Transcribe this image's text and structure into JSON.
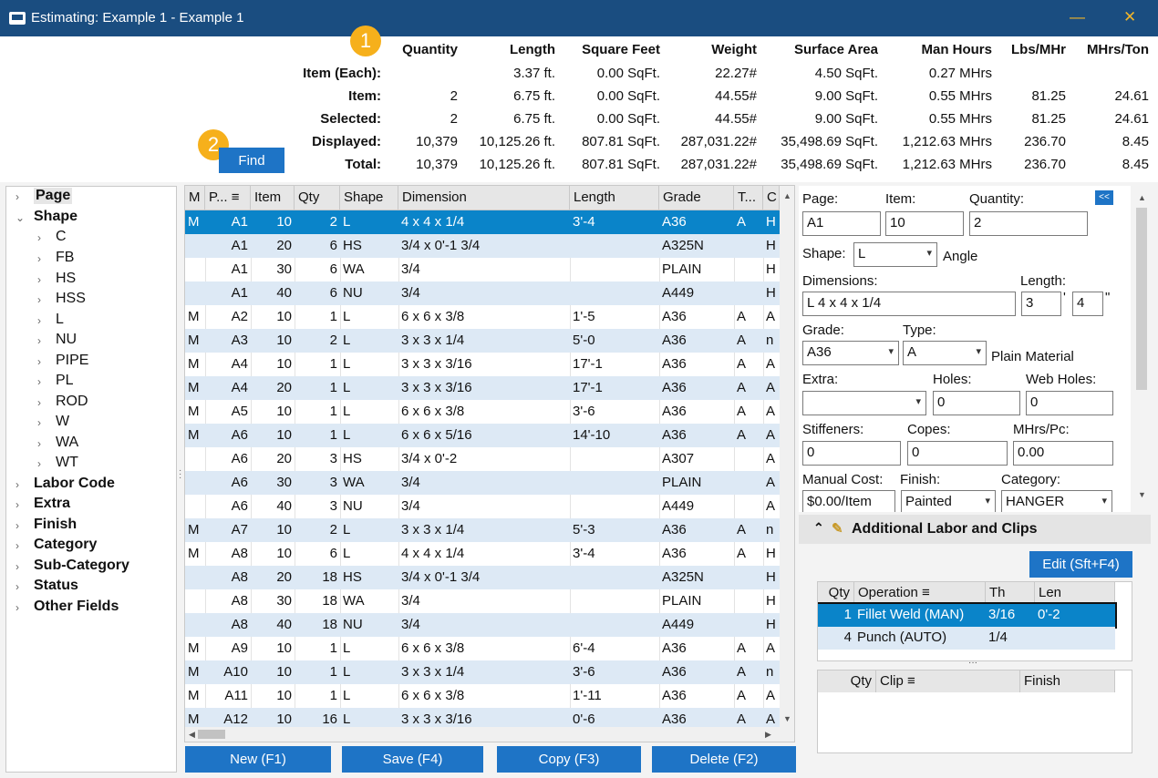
{
  "window": {
    "title": "Estimating: Example 1 - Example 1",
    "minimize": "—",
    "close": "✕"
  },
  "summary": {
    "badge1": "1",
    "badge2": "2",
    "columns": [
      "Quantity",
      "Length",
      "Square Feet",
      "Weight",
      "Surface Area",
      "Man Hours",
      "Lbs/MHr",
      "MHrs/Ton"
    ],
    "rows": [
      {
        "label": "Item (Each):",
        "values": [
          "",
          "3.37 ft.",
          "0.00 SqFt.",
          "22.27#",
          "4.50 SqFt.",
          "0.27 MHrs",
          "",
          ""
        ]
      },
      {
        "label": "Item:",
        "values": [
          "2",
          "6.75 ft.",
          "0.00 SqFt.",
          "44.55#",
          "9.00 SqFt.",
          "0.55 MHrs",
          "81.25",
          "24.61"
        ]
      },
      {
        "label": "Selected:",
        "values": [
          "2",
          "6.75 ft.",
          "0.00 SqFt.",
          "44.55#",
          "9.00 SqFt.",
          "0.55 MHrs",
          "81.25",
          "24.61"
        ]
      },
      {
        "label": "Displayed:",
        "values": [
          "10,379",
          "10,125.26 ft.",
          "807.81 SqFt.",
          "287,031.22#",
          "35,498.69 SqFt.",
          "1,212.63 MHrs",
          "236.70",
          "8.45"
        ]
      },
      {
        "label": "Total:",
        "values": [
          "10,379",
          "10,125.26 ft.",
          "807.81 SqFt.",
          "287,031.22#",
          "35,498.69 SqFt.",
          "1,212.63 MHrs",
          "236.70",
          "8.45"
        ]
      }
    ],
    "find_label": "Find"
  },
  "tree": {
    "nodes": [
      {
        "label": "Page",
        "bold": true,
        "level": 0,
        "expander": "›"
      },
      {
        "label": "Shape",
        "bold": true,
        "level": 0,
        "expander": "⌄"
      },
      {
        "label": "C",
        "bold": false,
        "level": 1,
        "expander": "›"
      },
      {
        "label": "FB",
        "bold": false,
        "level": 1,
        "expander": "›"
      },
      {
        "label": "HS",
        "bold": false,
        "level": 1,
        "expander": "›"
      },
      {
        "label": "HSS",
        "bold": false,
        "level": 1,
        "expander": "›"
      },
      {
        "label": "L",
        "bold": false,
        "level": 1,
        "expander": "›"
      },
      {
        "label": "NU",
        "bold": false,
        "level": 1,
        "expander": "›"
      },
      {
        "label": "PIPE",
        "bold": false,
        "level": 1,
        "expander": "›"
      },
      {
        "label": "PL",
        "bold": false,
        "level": 1,
        "expander": "›"
      },
      {
        "label": "ROD",
        "bold": false,
        "level": 1,
        "expander": "›"
      },
      {
        "label": "W",
        "bold": false,
        "level": 1,
        "expander": "›"
      },
      {
        "label": "WA",
        "bold": false,
        "level": 1,
        "expander": "›"
      },
      {
        "label": "WT",
        "bold": false,
        "level": 1,
        "expander": "›"
      },
      {
        "label": "Labor Code",
        "bold": true,
        "level": 0,
        "expander": "›"
      },
      {
        "label": "Extra",
        "bold": true,
        "level": 0,
        "expander": "›"
      },
      {
        "label": "Finish",
        "bold": true,
        "level": 0,
        "expander": "›"
      },
      {
        "label": "Category",
        "bold": true,
        "level": 0,
        "expander": "›"
      },
      {
        "label": "Sub-Category",
        "bold": true,
        "level": 0,
        "expander": "›"
      },
      {
        "label": "Status",
        "bold": true,
        "level": 0,
        "expander": "›"
      },
      {
        "label": "Other Fields",
        "bold": true,
        "level": 0,
        "expander": "›"
      }
    ]
  },
  "grid": {
    "headers": [
      "M",
      "P... ≡",
      "Item",
      "Qty",
      "Shape",
      "Dimension",
      "Length",
      "Grade",
      "T...",
      "C"
    ],
    "rows": [
      [
        "M",
        "A1",
        "10",
        "2",
        "L",
        "4 x 4 x 1/4",
        "3'-4",
        "A36",
        "A",
        "H"
      ],
      [
        "",
        "A1",
        "20",
        "6",
        "HS",
        "3/4 x 0'-1 3/4",
        "",
        "A325N",
        "",
        "H"
      ],
      [
        "",
        "A1",
        "30",
        "6",
        "WA",
        "3/4",
        "",
        "PLAIN",
        "",
        "H"
      ],
      [
        "",
        "A1",
        "40",
        "6",
        "NU",
        "3/4",
        "",
        "A449",
        "",
        "H"
      ],
      [
        "M",
        "A2",
        "10",
        "1",
        "L",
        "6 x 6 x 3/8",
        "1'-5",
        "A36",
        "A",
        "A"
      ],
      [
        "M",
        "A3",
        "10",
        "2",
        "L",
        "3 x 3 x 1/4",
        "5'-0",
        "A36",
        "A",
        "n"
      ],
      [
        "M",
        "A4",
        "10",
        "1",
        "L",
        "3 x 3 x 3/16",
        "17'-1",
        "A36",
        "A",
        "A"
      ],
      [
        "M",
        "A4",
        "20",
        "1",
        "L",
        "3 x 3 x 3/16",
        "17'-1",
        "A36",
        "A",
        "A"
      ],
      [
        "M",
        "A5",
        "10",
        "1",
        "L",
        "6 x 6 x 3/8",
        "3'-6",
        "A36",
        "A",
        "A"
      ],
      [
        "M",
        "A6",
        "10",
        "1",
        "L",
        "6 x 6 x 5/16",
        "14'-10",
        "A36",
        "A",
        "A"
      ],
      [
        "",
        "A6",
        "20",
        "3",
        "HS",
        "3/4 x 0'-2",
        "",
        "A307",
        "",
        "A"
      ],
      [
        "",
        "A6",
        "30",
        "3",
        "WA",
        "3/4",
        "",
        "PLAIN",
        "",
        "A"
      ],
      [
        "",
        "A6",
        "40",
        "3",
        "NU",
        "3/4",
        "",
        "A449",
        "",
        "A"
      ],
      [
        "M",
        "A7",
        "10",
        "2",
        "L",
        "3 x 3 x 1/4",
        "5'-3",
        "A36",
        "A",
        "n"
      ],
      [
        "M",
        "A8",
        "10",
        "6",
        "L",
        "4 x 4 x 1/4",
        "3'-4",
        "A36",
        "A",
        "H"
      ],
      [
        "",
        "A8",
        "20",
        "18",
        "HS",
        "3/4 x 0'-1 3/4",
        "",
        "A325N",
        "",
        "H"
      ],
      [
        "",
        "A8",
        "30",
        "18",
        "WA",
        "3/4",
        "",
        "PLAIN",
        "",
        "H"
      ],
      [
        "",
        "A8",
        "40",
        "18",
        "NU",
        "3/4",
        "",
        "A449",
        "",
        "H"
      ],
      [
        "M",
        "A9",
        "10",
        "1",
        "L",
        "6 x 6 x 3/8",
        "6'-4",
        "A36",
        "A",
        "A"
      ],
      [
        "M",
        "A10",
        "10",
        "1",
        "L",
        "3 x 3 x 1/4",
        "3'-6",
        "A36",
        "A",
        "n"
      ],
      [
        "M",
        "A11",
        "10",
        "1",
        "L",
        "6 x 6 x 3/8",
        "1'-11",
        "A36",
        "A",
        "A"
      ],
      [
        "M",
        "A12",
        "10",
        "16",
        "L",
        "3 x 3 x 3/16",
        "0'-6",
        "A36",
        "A",
        "A"
      ]
    ]
  },
  "actions": {
    "new": "New (F1)",
    "save": "Save (F4)",
    "copy": "Copy (F3)",
    "delete": "Delete (F2)"
  },
  "detail": {
    "collapse": "<<",
    "page_label": "Page:",
    "page": "A1",
    "item_label": "Item:",
    "item": "10",
    "quantity_label": "Quantity:",
    "quantity": "2",
    "shape_label": "Shape:",
    "shape": "L",
    "shape_desc": "Angle",
    "dimensions_label": "Dimensions:",
    "dimensions": "L 4 x 4 x 1/4",
    "length_label": "Length:",
    "length_ft": "3",
    "ft_mark": "'",
    "length_in": "4",
    "in_mark": "\"",
    "grade_label": "Grade:",
    "grade": "A36",
    "type_label": "Type:",
    "type": "A",
    "type_desc": "Plain Material",
    "extra_label": "Extra:",
    "extra": "",
    "holes_label": "Holes:",
    "holes": "0",
    "web_holes_label": "Web Holes:",
    "web_holes": "0",
    "stiffeners_label": "Stiffeners:",
    "stiffeners": "0",
    "copes_label": "Copes:",
    "copes": "0",
    "mhrs_label": "MHrs/Pc:",
    "mhrs": "0.00",
    "manual_cost_label": "Manual Cost:",
    "manual_cost": "$0.00/Item",
    "finish_label": "Finish:",
    "finish": "Painted",
    "category_label": "Category:",
    "category": "HANGER"
  },
  "additional_labor": {
    "title": "Additional Labor and Clips",
    "edit_label": "Edit (Sft+F4)",
    "op_headers": [
      "Qty",
      "Operation ≡",
      "Th",
      "Len"
    ],
    "operations": [
      [
        "1",
        "Fillet Weld (MAN)",
        "3/16",
        "0'-2"
      ],
      [
        "4",
        "Punch (AUTO)",
        "1/4",
        ""
      ]
    ],
    "clip_headers": [
      "Qty",
      "Clip ≡",
      "Finish"
    ]
  }
}
